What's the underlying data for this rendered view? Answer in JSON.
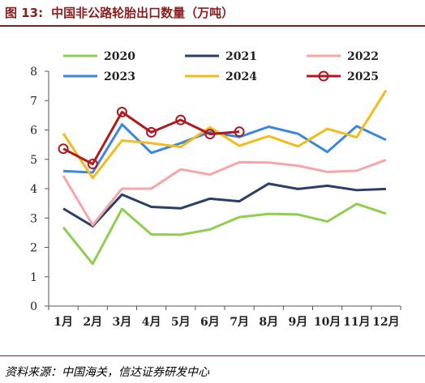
{
  "figure": {
    "label": "图 13:",
    "title": "中国非公路轮胎出口数量（万吨）",
    "source": "资料来源：中国海关，信达证券研发中心"
  },
  "chart_data": {
    "type": "line",
    "categories": [
      "1月",
      "2月",
      "3月",
      "4月",
      "5月",
      "6月",
      "7月",
      "8月",
      "9月",
      "10月",
      "11月",
      "12月"
    ],
    "ylim": [
      0,
      8
    ],
    "yticks": [
      0,
      1,
      2,
      3,
      4,
      5,
      6,
      7,
      8
    ],
    "grid": false,
    "legend_position": "top",
    "series": [
      {
        "name": "2020",
        "color": "#8fcf4f",
        "marker": "none",
        "values": [
          2.68,
          1.44,
          3.31,
          2.44,
          2.43,
          2.61,
          3.03,
          3.14,
          3.12,
          2.88,
          3.48,
          3.15
        ]
      },
      {
        "name": "2021",
        "color": "#2a3f66",
        "marker": "none",
        "values": [
          3.32,
          2.72,
          3.8,
          3.38,
          3.33,
          3.66,
          3.57,
          4.17,
          3.99,
          4.1,
          3.95,
          3.99
        ]
      },
      {
        "name": "2022",
        "color": "#f7a6a8",
        "marker": "none",
        "values": [
          4.44,
          2.76,
          4.0,
          4.0,
          4.66,
          4.48,
          4.9,
          4.89,
          4.78,
          4.57,
          4.61,
          4.98
        ]
      },
      {
        "name": "2023",
        "color": "#3b86e3",
        "marker": "none",
        "values": [
          4.6,
          4.55,
          6.19,
          5.22,
          5.55,
          5.93,
          5.76,
          6.11,
          5.87,
          5.25,
          6.13,
          5.66
        ]
      },
      {
        "name": "2024",
        "color": "#f5bb18",
        "marker": "none",
        "values": [
          5.88,
          4.36,
          5.64,
          5.55,
          5.42,
          6.09,
          5.46,
          5.79,
          5.44,
          6.04,
          5.75,
          7.35
        ]
      },
      {
        "name": "2025",
        "color": "#b0191e",
        "marker": "circle",
        "values": [
          5.36,
          4.84,
          6.61,
          5.92,
          6.34,
          5.86,
          5.94,
          null,
          null,
          null,
          null,
          null
        ]
      }
    ]
  }
}
